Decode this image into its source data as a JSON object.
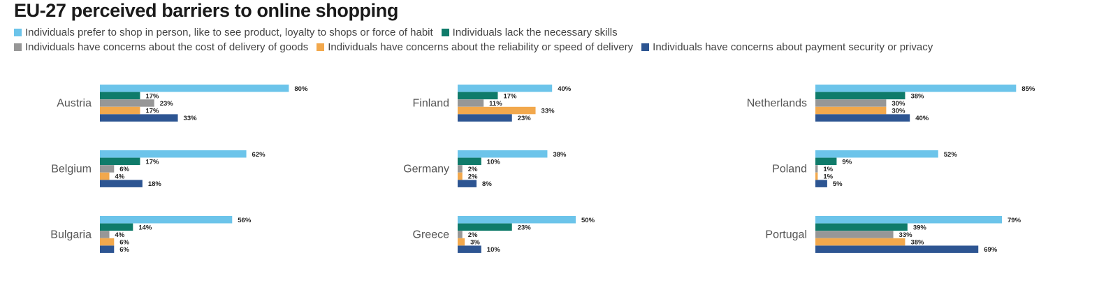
{
  "header": {
    "title": "EU-27 perceived barriers to online shopping"
  },
  "legend": [
    {
      "label": "Individuals prefer to shop in person, like to see product, loyalty to shops or force of habit",
      "color": "#6cc4ea"
    },
    {
      "label": "Individuals lack the necessary skills",
      "color": "#0f7b6a"
    },
    {
      "label": "Individuals have concerns about the cost of delivery of goods",
      "color": "#979797"
    },
    {
      "label": "Individuals have concerns about the reliability or speed of delivery",
      "color": "#f2a84c"
    },
    {
      "label": "Individuals have concerns about payment security or privacy",
      "color": "#2d5592"
    }
  ],
  "chart_data": {
    "type": "bar",
    "title": "EU-27 perceived barriers to online shopping",
    "value_suffix": "%",
    "xlim": [
      0,
      100
    ],
    "series": [
      {
        "name": "Individuals prefer to shop in person, like to see product, loyalty to shops or force of habit",
        "color": "#6cc4ea"
      },
      {
        "name": "Individuals lack the necessary skills",
        "color": "#0f7b6a"
      },
      {
        "name": "Individuals have concerns about the cost of delivery of goods",
        "color": "#979797"
      },
      {
        "name": "Individuals have concerns about the reliability or speed of delivery",
        "color": "#f2a84c"
      },
      {
        "name": "Individuals have concerns about payment security or privacy",
        "color": "#2d5592"
      }
    ],
    "panels": [
      {
        "country": "Austria",
        "values": [
          80,
          17,
          23,
          17,
          33
        ]
      },
      {
        "country": "Belgium",
        "values": [
          62,
          17,
          6,
          4,
          18
        ]
      },
      {
        "country": "Bulgaria",
        "values": [
          56,
          14,
          4,
          6,
          6
        ]
      },
      {
        "country": "Finland",
        "values": [
          40,
          17,
          11,
          33,
          23
        ]
      },
      {
        "country": "Germany",
        "values": [
          38,
          10,
          2,
          2,
          8
        ]
      },
      {
        "country": "Greece",
        "values": [
          50,
          23,
          2,
          3,
          10
        ]
      },
      {
        "country": "Netherlands",
        "values": [
          85,
          38,
          30,
          30,
          40
        ]
      },
      {
        "country": "Poland",
        "values": [
          52,
          9,
          1,
          1,
          5
        ]
      },
      {
        "country": "Portugal",
        "values": [
          79,
          39,
          33,
          38,
          69
        ]
      }
    ]
  }
}
